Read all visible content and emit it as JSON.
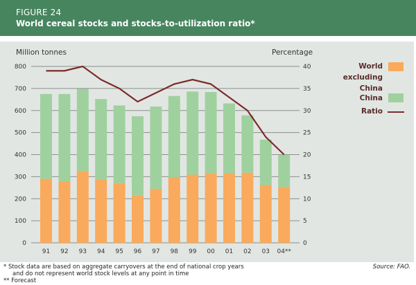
{
  "header": {
    "figure_label": "FIGURE 24",
    "title": "World cereal stocks and stocks-to-utilization ratio*"
  },
  "colors": {
    "header_bg": "#47855f",
    "panel_bg": "#e2e6e3",
    "world_excl_china": "#f9aa5c",
    "china": "#9fd19f",
    "ratio": "#7b2a2a"
  },
  "chart_data": {
    "type": "bar",
    "stacked": true,
    "title": "World cereal stocks and stocks-to-utilization ratio*",
    "categories": [
      "91",
      "92",
      "93",
      "94",
      "95",
      "96",
      "97",
      "98",
      "99",
      "00",
      "01",
      "02",
      "03",
      "04**"
    ],
    "series": [
      {
        "name": "World excluding China",
        "type": "bar",
        "axis": "left",
        "values": [
          290,
          279,
          326,
          287,
          271,
          216,
          245,
          298,
          309,
          316,
          315,
          318,
          262,
          253
        ]
      },
      {
        "name": "China",
        "type": "bar",
        "axis": "left",
        "values": [
          385,
          396,
          372,
          365,
          352,
          358,
          373,
          368,
          377,
          368,
          317,
          260,
          206,
          146
        ]
      },
      {
        "name": "Ratio",
        "type": "line",
        "axis": "right",
        "values": [
          39,
          39,
          40,
          37,
          35,
          32,
          34,
          36,
          37,
          36,
          33,
          30,
          24,
          20
        ]
      }
    ],
    "ylabel_left": "Million tonnes",
    "ylabel_right": "Percentage",
    "ylim_left": [
      0,
      800
    ],
    "ylim_right": [
      0,
      40
    ],
    "yticks_left": [
      "800",
      "700",
      "600",
      "500",
      "400",
      "300",
      "200",
      "100",
      "0"
    ],
    "yticks_right": [
      "40",
      "35",
      "30",
      "25",
      "20",
      "15",
      "10",
      "5",
      "0"
    ],
    "grid": true,
    "legend_position": "right",
    "legend": [
      {
        "label": "World excluding China",
        "lines": [
          "World",
          "excluding",
          "China"
        ],
        "kind": "swatch"
      },
      {
        "label": "China",
        "lines": [
          "China"
        ],
        "kind": "swatch"
      },
      {
        "label": "Ratio",
        "lines": [
          "Ratio"
        ],
        "kind": "line"
      }
    ]
  },
  "footnotes": {
    "note1_line1": "*  Stock data are based on aggregate carryovers at the end of national crop years",
    "note1_line2": "and do not represent world stock levels at any point in time",
    "note2": "** Forecast",
    "source": "Source: FAO."
  }
}
